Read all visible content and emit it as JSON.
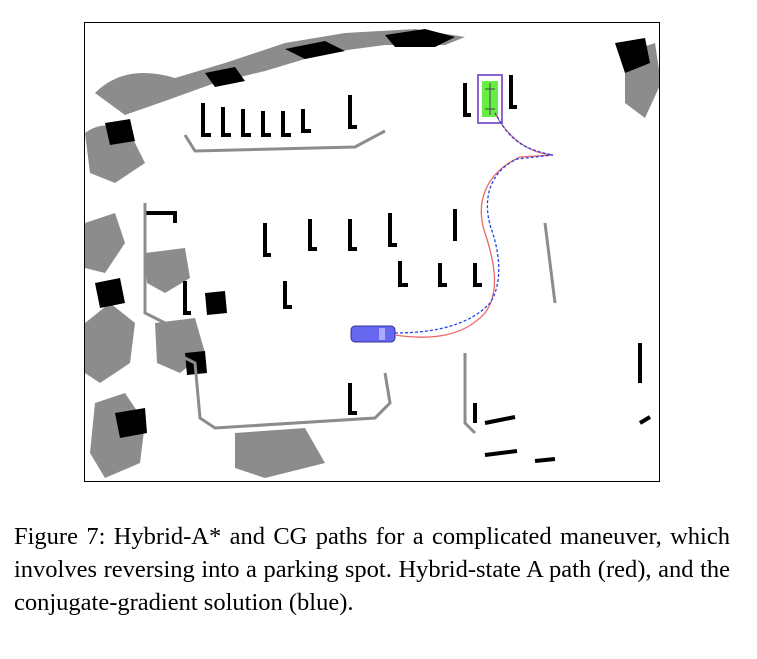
{
  "figure": {
    "caption": "Figure 7: Hybrid-A* and CG paths for a complicated maneuver, which involves reversing into a parking spot. Hybrid-state A path (red), and the conjugate-gradient solution (blue).",
    "colors": {
      "obstacle": "#000000",
      "obstacle_gray": "#8a8a8a",
      "parking_spot": "#66ee44",
      "vehicle": "#6666ee",
      "hybrid_a_path": "#ee6666",
      "cg_path": "#2244ee"
    }
  }
}
